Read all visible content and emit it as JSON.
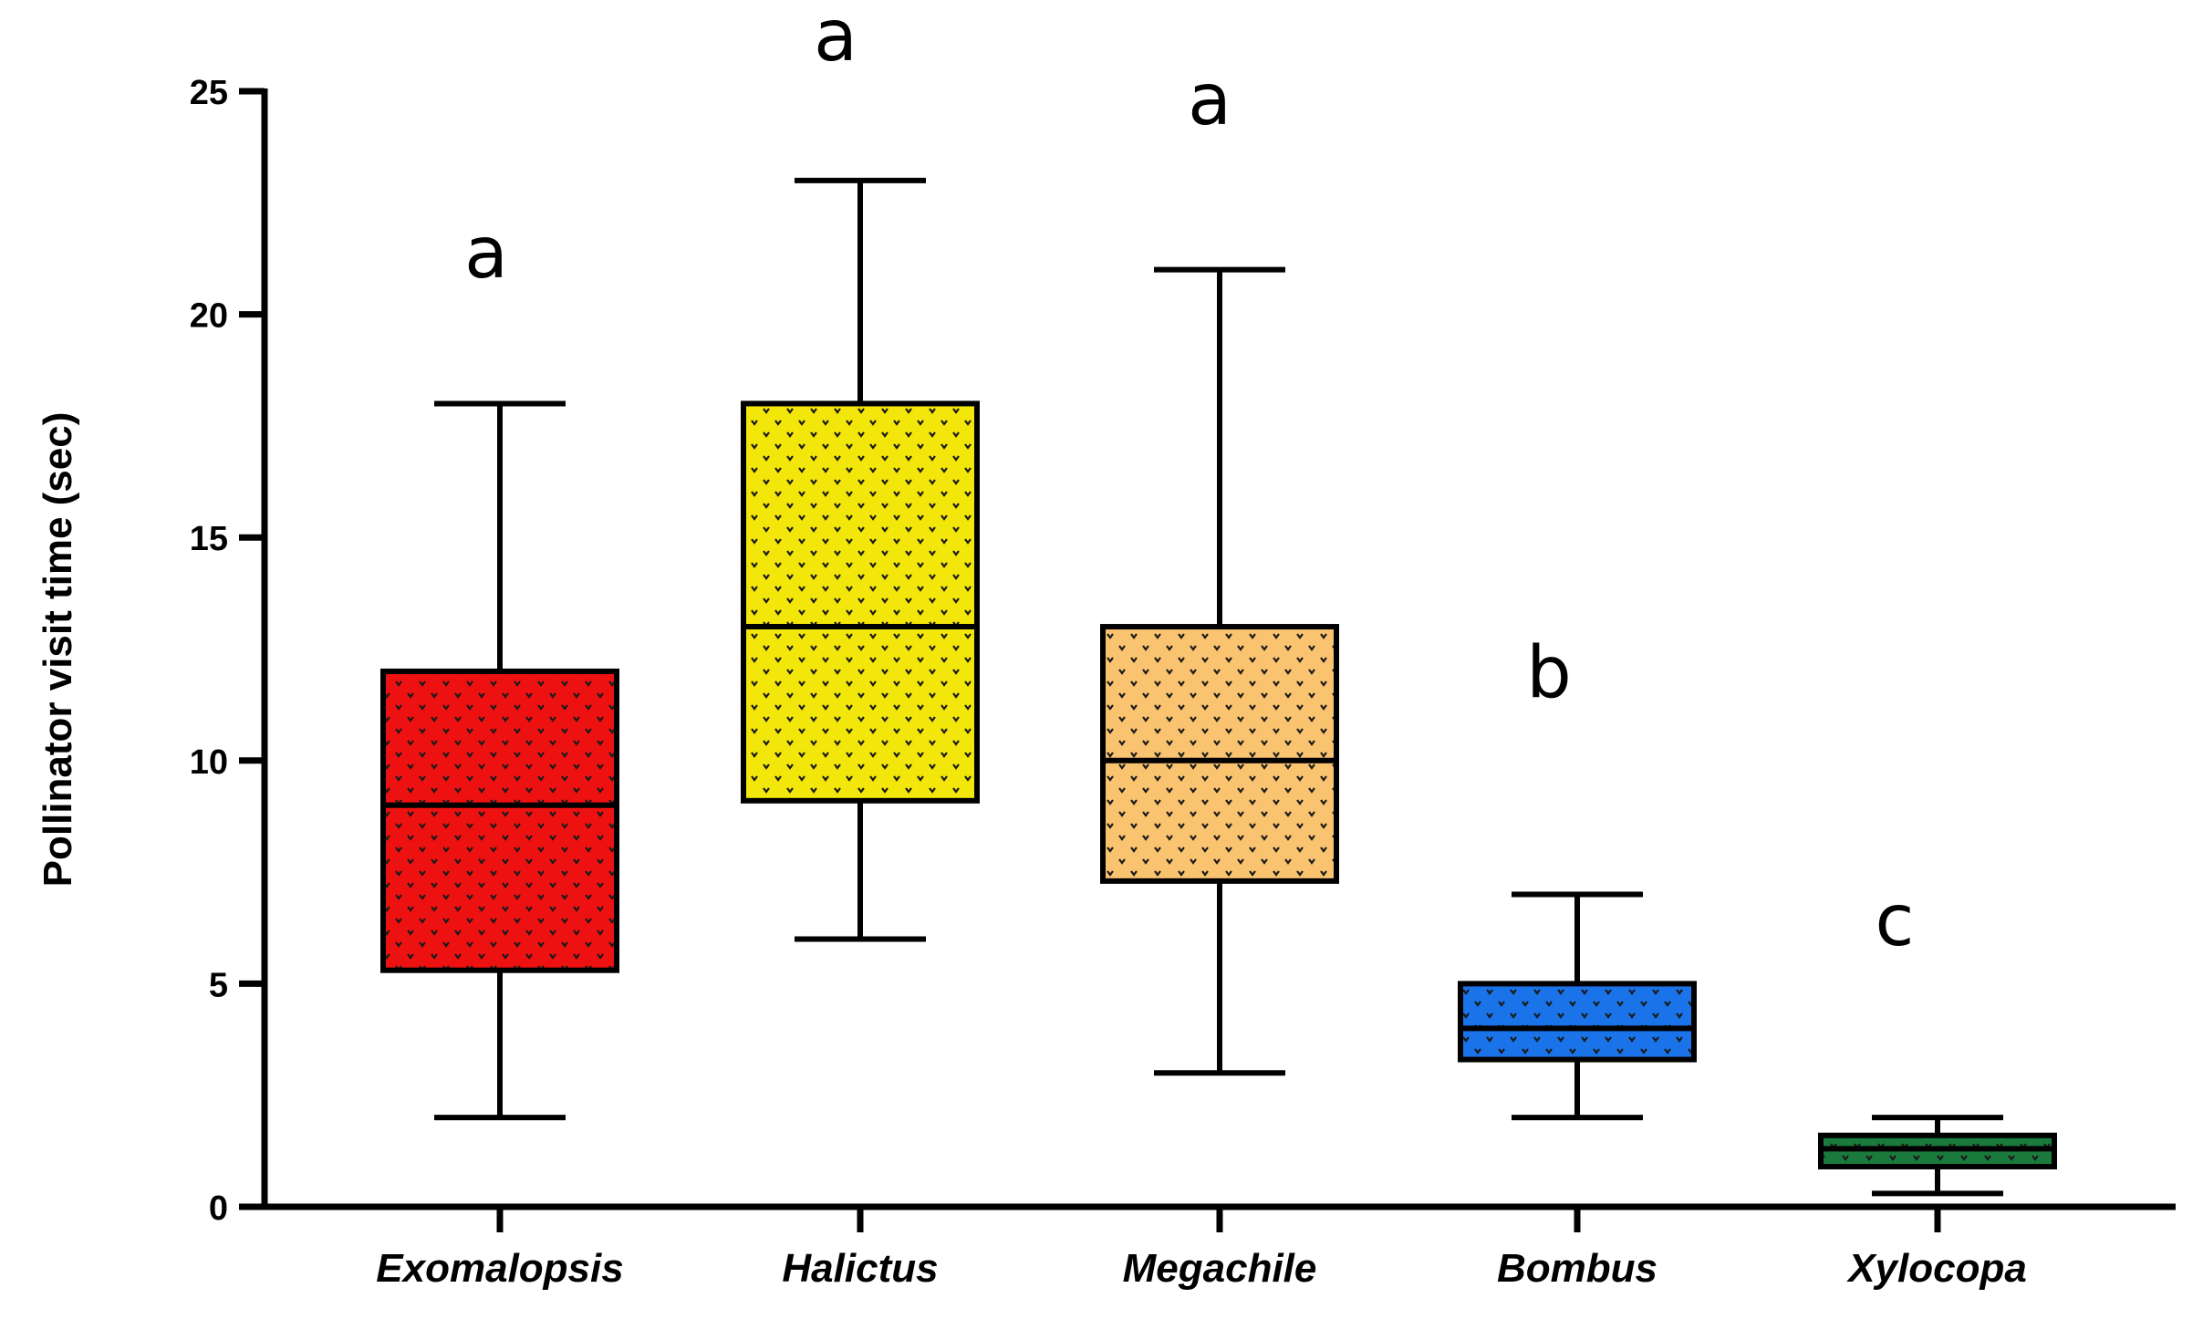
{
  "chart_data": {
    "type": "box",
    "title": "",
    "xlabel": "",
    "ylabel": "Pollinator visit time (sec)",
    "ylim": [
      0,
      25
    ],
    "yticks": [
      "0",
      "5",
      "10",
      "15",
      "20",
      "25"
    ],
    "grid": false,
    "legend": "none",
    "categories": [
      "Exomalopsis",
      "Halictus",
      "Megachile",
      "Bombus",
      "Xylocopa"
    ],
    "boxes": [
      {
        "category": "Exomalopsis",
        "min": 2,
        "q1": 5.3,
        "median": 9,
        "q3": 12,
        "max": 18,
        "letter": "a",
        "color": "#ee1111"
      },
      {
        "category": "Halictus",
        "min": 6,
        "q1": 9.1,
        "median": 13,
        "q3": 18,
        "max": 23,
        "letter": "a",
        "color": "#f2e60a"
      },
      {
        "category": "Megachile",
        "min": 3,
        "q1": 7.3,
        "median": 10,
        "q3": 13,
        "max": 21,
        "letter": "a",
        "color": "#f9c36f"
      },
      {
        "category": "Bombus",
        "min": 2,
        "q1": 3.3,
        "median": 4,
        "q3": 5,
        "max": 7,
        "letter": "b",
        "color": "#1a73e8"
      },
      {
        "category": "Xylocopa",
        "min": 0.3,
        "q1": 0.9,
        "median": 1.3,
        "q3": 1.6,
        "max": 2,
        "letter": "c",
        "color": "#1a7a3c"
      }
    ]
  }
}
